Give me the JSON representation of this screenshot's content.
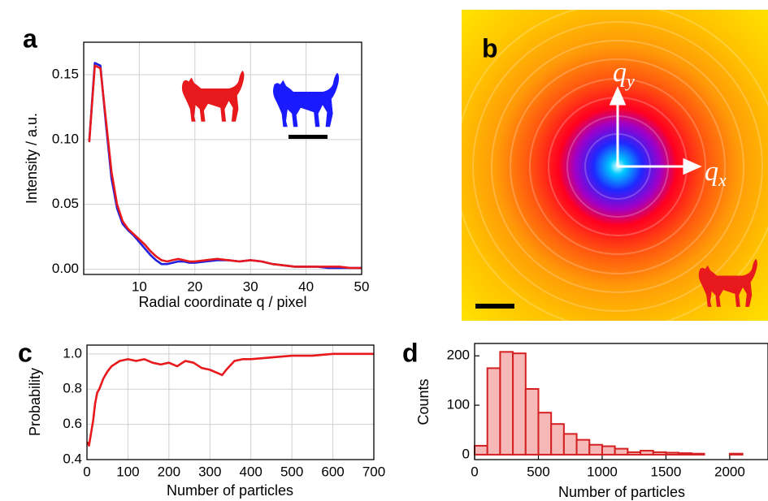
{
  "panel_b": {
    "panel_label": "b",
    "axis_labels": [
      {
        "base": "q",
        "sub": "y"
      },
      {
        "base": "q",
        "sub": "x"
      }
    ]
  },
  "chart_data": [
    {
      "type": "line",
      "panel_label": "a",
      "xlabel": "Radial coordinate q / pixel",
      "ylabel": "Intensity / a.u.",
      "x": [
        1,
        2,
        3,
        4,
        5,
        6,
        7,
        8,
        9,
        10,
        11,
        12,
        13,
        14,
        15,
        16,
        17,
        18,
        19,
        20,
        22,
        24,
        26,
        28,
        30,
        32,
        34,
        36,
        38,
        40,
        42,
        44,
        46,
        48,
        50
      ],
      "series": [
        {
          "color": "#2020e0",
          "values": [
            0.099,
            0.159,
            0.157,
            0.112,
            0.07,
            0.047,
            0.035,
            0.03,
            0.026,
            0.021,
            0.016,
            0.011,
            0.007,
            0.004,
            0.004,
            0.005,
            0.006,
            0.006,
            0.005,
            0.005,
            0.006,
            0.007,
            0.007,
            0.006,
            0.007,
            0.006,
            0.004,
            0.003,
            0.002,
            0.002,
            0.002,
            0.001,
            0.001,
            0.001,
            0.001
          ]
        },
        {
          "color": "#e8191c",
          "values": [
            0.098,
            0.157,
            0.155,
            0.115,
            0.075,
            0.05,
            0.037,
            0.031,
            0.027,
            0.023,
            0.019,
            0.014,
            0.01,
            0.007,
            0.006,
            0.007,
            0.008,
            0.007,
            0.006,
            0.006,
            0.007,
            0.008,
            0.007,
            0.006,
            0.007,
            0.006,
            0.004,
            0.003,
            0.002,
            0.002,
            0.002,
            0.002,
            0.002,
            0.001,
            0.001
          ]
        }
      ],
      "xlim": [
        0,
        50
      ],
      "ylim": [
        -0.004,
        0.175
      ],
      "xticks": [
        10,
        20,
        30,
        40,
        50
      ],
      "yticks": [
        {
          "value": 0,
          "label": "0.00"
        },
        0.05,
        {
          "value": 0.1,
          "label": "0.10"
        },
        0.15
      ],
      "grid": true
    },
    {
      "type": "line",
      "panel_label": "c",
      "xlabel": "Number of particles",
      "ylabel": "Probability",
      "x": [
        1,
        5,
        10,
        15,
        20,
        25,
        30,
        40,
        50,
        60,
        80,
        100,
        120,
        140,
        160,
        180,
        200,
        220,
        240,
        260,
        280,
        300,
        320,
        330,
        340,
        360,
        380,
        400,
        450,
        500,
        550,
        600,
        650,
        700
      ],
      "series": [
        {
          "color": "#e8191c",
          "values": [
            0.5,
            0.48,
            0.55,
            0.62,
            0.72,
            0.78,
            0.8,
            0.86,
            0.9,
            0.93,
            0.96,
            0.97,
            0.96,
            0.97,
            0.95,
            0.94,
            0.95,
            0.93,
            0.96,
            0.95,
            0.92,
            0.91,
            0.89,
            0.88,
            0.91,
            0.96,
            0.97,
            0.97,
            0.98,
            0.99,
            0.99,
            1.0,
            1.0,
            1.0
          ]
        }
      ],
      "xlim": [
        0,
        700
      ],
      "ylim": [
        0.4,
        1.05
      ],
      "xticks": [
        0,
        100,
        200,
        300,
        400,
        500,
        600,
        700
      ],
      "yticks": [
        0.4,
        0.6,
        0.8,
        {
          "value": 1,
          "label": "1.0"
        }
      ],
      "grid": true
    },
    {
      "type": "histogram",
      "panel_label": "d",
      "xlabel": "Number of particles",
      "ylabel": "Counts",
      "bins": [
        0,
        100,
        200,
        300,
        400,
        500,
        600,
        700,
        800,
        900,
        1000,
        1100,
        1200,
        1300,
        1400,
        1500,
        1600,
        1700,
        1800,
        1900,
        2000,
        2100
      ],
      "values": [
        18,
        175,
        208,
        205,
        133,
        85,
        62,
        42,
        30,
        20,
        17,
        12,
        5,
        8,
        5,
        4,
        3,
        2,
        0,
        0,
        2
      ],
      "color": "#f7b8b8",
      "edgecolor": "#d42020",
      "xlim": [
        0,
        2300
      ],
      "ylim": [
        -10,
        225
      ],
      "xticks": [
        0,
        500,
        1000,
        1500,
        2000
      ],
      "yticks": [
        0,
        100,
        200
      ],
      "grid": false
    }
  ]
}
